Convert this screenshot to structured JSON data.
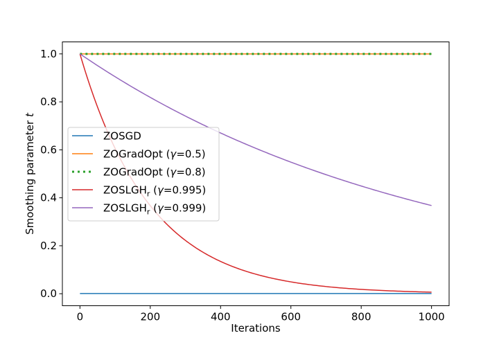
{
  "chart_data": {
    "type": "line",
    "xlabel": "Iterations",
    "ylabel": "Smoothing parameter",
    "ylabel_var": "t",
    "xlim": [
      -50,
      1050
    ],
    "ylim": [
      -0.05,
      1.05
    ],
    "xticks": [
      0,
      200,
      400,
      600,
      800,
      1000
    ],
    "yticks": [
      0.0,
      0.2,
      0.4,
      0.6,
      0.8,
      1.0
    ],
    "xtick_labels": [
      "0",
      "200",
      "400",
      "600",
      "800",
      "1000"
    ],
    "ytick_labels": [
      "0.0",
      "0.2",
      "0.4",
      "0.6",
      "0.8",
      "1.0"
    ],
    "grid": false,
    "legend_position": "center-left",
    "series": [
      {
        "name": "ZOSGD",
        "label_parts": [
          "ZOSGD"
        ],
        "color": "#1f77b4",
        "style": "solid",
        "kind": "constant",
        "value": 0.001
      },
      {
        "name": "ZOGradOpt (γ=0.5)",
        "label_parts": [
          "ZOGradOpt (",
          "γ",
          "=0.5)"
        ],
        "color": "#ff7f0e",
        "style": "solid",
        "kind": "constant",
        "value": 1.0
      },
      {
        "name": "ZOGradOpt (γ=0.8)",
        "label_parts": [
          "ZOGradOpt (",
          "γ",
          "=0.8)"
        ],
        "color": "#2ca02c",
        "style": "dotted",
        "kind": "constant",
        "value": 1.0
      },
      {
        "name": "ZOSLGHr (γ=0.995)",
        "label_parts": [
          "ZOSLGH",
          "r",
          " (",
          "γ",
          "=0.995)"
        ],
        "color": "#d62728",
        "style": "solid",
        "kind": "geometric",
        "start": 1.0,
        "gamma": 0.995
      },
      {
        "name": "ZOSLGHr (γ=0.999)",
        "label_parts": [
          "ZOSLGH",
          "r",
          " (",
          "γ",
          "=0.999)"
        ],
        "color": "#9467bd",
        "style": "solid",
        "kind": "geometric",
        "start": 1.0,
        "gamma": 0.999
      }
    ],
    "x_range": [
      0,
      1000
    ]
  }
}
